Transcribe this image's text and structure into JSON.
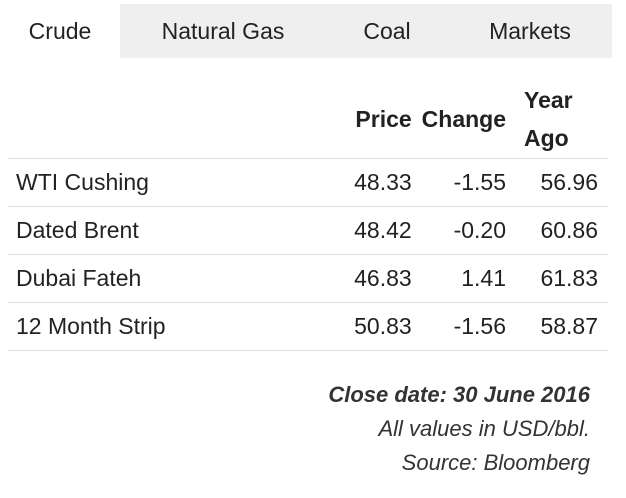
{
  "tabs": [
    {
      "label": "Crude",
      "active": true
    },
    {
      "label": "Natural Gas",
      "active": false
    },
    {
      "label": "Coal",
      "active": false
    },
    {
      "label": "Markets",
      "active": false
    }
  ],
  "table": {
    "headers": {
      "price": "Price",
      "change": "Change",
      "year_ago_line1": "Year",
      "year_ago_line2": "Ago"
    },
    "rows": [
      {
        "name": "WTI Cushing",
        "price": "48.33",
        "change": "-1.55",
        "year_ago": "56.96"
      },
      {
        "name": "Dated Brent",
        "price": "48.42",
        "change": "-0.20",
        "year_ago": "60.86"
      },
      {
        "name": "Dubai Fateh",
        "price": "46.83",
        "change": "1.41",
        "year_ago": "61.83"
      },
      {
        "name": "12 Month Strip",
        "price": "50.83",
        "change": "-1.56",
        "year_ago": "58.87"
      }
    ]
  },
  "footer": {
    "close_date": "Close date: 30 June 2016",
    "units": "All values in USD/bbl.",
    "source": "Source: Bloomberg"
  }
}
